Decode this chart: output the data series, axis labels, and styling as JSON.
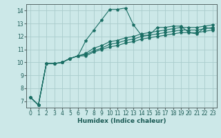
{
  "title": "",
  "xlabel": "Humidex (Indice chaleur)",
  "ylabel": "",
  "background_color": "#cce8e8",
  "grid_color": "#aacccc",
  "line_color": "#1a6e64",
  "xlim": [
    -0.5,
    23.5
  ],
  "ylim": [
    6.5,
    14.5
  ],
  "xticks": [
    0,
    1,
    2,
    3,
    4,
    5,
    6,
    7,
    8,
    9,
    10,
    11,
    12,
    13,
    14,
    15,
    16,
    17,
    18,
    19,
    20,
    21,
    22,
    23
  ],
  "yticks": [
    7,
    8,
    9,
    10,
    11,
    12,
    13,
    14
  ],
  "series": [
    [
      7.3,
      6.7,
      9.9,
      9.9,
      10.0,
      10.3,
      10.5,
      11.7,
      12.5,
      13.3,
      14.1,
      14.1,
      14.2,
      12.9,
      12.1,
      12.1,
      12.7,
      12.7,
      12.8,
      12.8,
      12.3,
      12.2,
      12.7,
      12.6
    ],
    [
      7.3,
      6.7,
      9.9,
      9.9,
      10.0,
      10.3,
      10.5,
      10.5,
      10.8,
      11.0,
      11.2,
      11.3,
      11.5,
      11.6,
      11.8,
      11.9,
      12.0,
      12.1,
      12.2,
      12.3,
      12.3,
      12.3,
      12.4,
      12.5
    ],
    [
      7.3,
      6.7,
      9.9,
      9.9,
      10.0,
      10.3,
      10.5,
      10.6,
      10.9,
      11.1,
      11.4,
      11.5,
      11.7,
      11.8,
      12.0,
      12.1,
      12.2,
      12.3,
      12.4,
      12.5,
      12.5,
      12.5,
      12.6,
      12.7
    ],
    [
      7.3,
      6.7,
      9.9,
      9.9,
      10.0,
      10.3,
      10.5,
      10.7,
      11.1,
      11.3,
      11.6,
      11.7,
      11.9,
      12.0,
      12.2,
      12.3,
      12.4,
      12.5,
      12.6,
      12.7,
      12.7,
      12.7,
      12.8,
      12.9
    ]
  ],
  "marker": "*",
  "markersize": 3.0,
  "linewidth": 0.8,
  "tick_fontsize": 5.5,
  "xlabel_fontsize": 6.5
}
